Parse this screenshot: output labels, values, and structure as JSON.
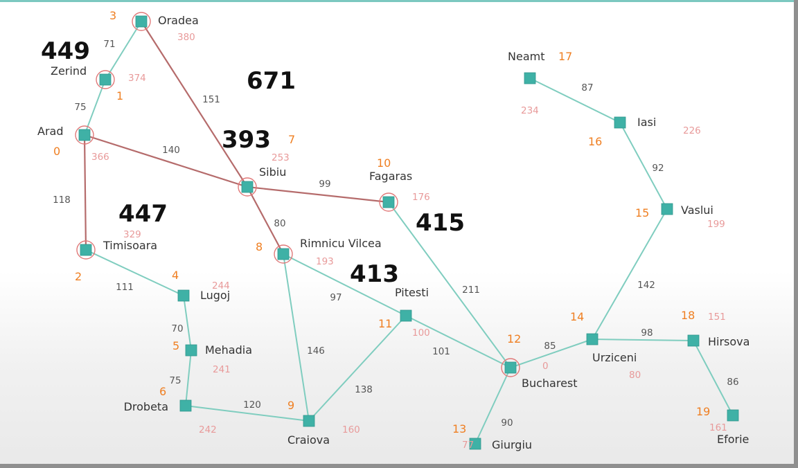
{
  "colors": {
    "edge_default": "#7fcdbf",
    "edge_highlight": "#b56b6b",
    "node_fill": "#3fb1a6",
    "ring": "#e07878",
    "index_text": "#ef7f22",
    "heuristic_text": "#e89a9a",
    "distance_text": "#555555",
    "fscore_text": "#111111"
  },
  "cities": [
    {
      "id": "arad",
      "name": "Arad",
      "index": "0",
      "heuristic": "366",
      "circled": true
    },
    {
      "id": "zerind",
      "name": "Zerind",
      "index": "1",
      "heuristic": "374",
      "circled": true
    },
    {
      "id": "timisoara",
      "name": "Timisoara",
      "index": "2",
      "heuristic": "329",
      "circled": true
    },
    {
      "id": "oradea",
      "name": "Oradea",
      "index": "3",
      "heuristic": "380",
      "circled": true
    },
    {
      "id": "lugoj",
      "name": "Lugoj",
      "index": "4",
      "heuristic": "244",
      "circled": false
    },
    {
      "id": "mehadia",
      "name": "Mehadia",
      "index": "5",
      "heuristic": "241",
      "circled": false
    },
    {
      "id": "drobeta",
      "name": "Drobeta",
      "index": "6",
      "heuristic": "242",
      "circled": false
    },
    {
      "id": "sibiu",
      "name": "Sibiu",
      "index": "7",
      "heuristic": "253",
      "circled": true
    },
    {
      "id": "rimnicu",
      "name": "Rimnicu Vilcea",
      "index": "8",
      "heuristic": "193",
      "circled": true
    },
    {
      "id": "craiova",
      "name": "Craiova",
      "index": "9",
      "heuristic": "160",
      "circled": false
    },
    {
      "id": "fagaras",
      "name": "Fagaras",
      "index": "10",
      "heuristic": "176",
      "circled": true
    },
    {
      "id": "pitesti",
      "name": "Pitesti",
      "index": "11",
      "heuristic": "100",
      "circled": false
    },
    {
      "id": "bucharest",
      "name": "Bucharest",
      "index": "12",
      "heuristic": "0",
      "circled": true
    },
    {
      "id": "giurgiu",
      "name": "Giurgiu",
      "index": "13",
      "heuristic": "77",
      "circled": false
    },
    {
      "id": "urziceni",
      "name": "Urziceni",
      "index": "14",
      "heuristic": "80",
      "circled": false
    },
    {
      "id": "vaslui",
      "name": "Vaslui",
      "index": "15",
      "heuristic": "199",
      "circled": false
    },
    {
      "id": "iasi",
      "name": "Iasi",
      "index": "16",
      "heuristic": "226",
      "circled": false
    },
    {
      "id": "neamt",
      "name": "Neamt",
      "index": "17",
      "heuristic": "234",
      "circled": false
    },
    {
      "id": "hirsova",
      "name": "Hirsova",
      "index": "18",
      "heuristic": "151",
      "circled": false
    },
    {
      "id": "eforie",
      "name": "Eforie",
      "index": "19",
      "heuristic": "161",
      "circled": false
    }
  ],
  "roads": [
    {
      "from": "oradea",
      "to": "zerind",
      "distance": "71",
      "highlighted": false
    },
    {
      "from": "zerind",
      "to": "arad",
      "distance": "75",
      "highlighted": false
    },
    {
      "from": "oradea",
      "to": "sibiu",
      "distance": "151",
      "highlighted": true
    },
    {
      "from": "arad",
      "to": "sibiu",
      "distance": "140",
      "highlighted": true
    },
    {
      "from": "arad",
      "to": "timisoara",
      "distance": "118",
      "highlighted": true
    },
    {
      "from": "timisoara",
      "to": "lugoj",
      "distance": "111",
      "highlighted": false
    },
    {
      "from": "lugoj",
      "to": "mehadia",
      "distance": "70",
      "highlighted": false
    },
    {
      "from": "mehadia",
      "to": "drobeta",
      "distance": "75",
      "highlighted": false
    },
    {
      "from": "drobeta",
      "to": "craiova",
      "distance": "120",
      "highlighted": false
    },
    {
      "from": "sibiu",
      "to": "fagaras",
      "distance": "99",
      "highlighted": true
    },
    {
      "from": "sibiu",
      "to": "rimnicu",
      "distance": "80",
      "highlighted": true
    },
    {
      "from": "rimnicu",
      "to": "pitesti",
      "distance": "97",
      "highlighted": false
    },
    {
      "from": "rimnicu",
      "to": "craiova",
      "distance": "146",
      "highlighted": false
    },
    {
      "from": "craiova",
      "to": "pitesti",
      "distance": "138",
      "highlighted": false
    },
    {
      "from": "fagaras",
      "to": "bucharest",
      "distance": "211",
      "highlighted": false
    },
    {
      "from": "pitesti",
      "to": "bucharest",
      "distance": "101",
      "highlighted": false
    },
    {
      "from": "bucharest",
      "to": "giurgiu",
      "distance": "90",
      "highlighted": false
    },
    {
      "from": "bucharest",
      "to": "urziceni",
      "distance": "85",
      "highlighted": false
    },
    {
      "from": "urziceni",
      "to": "hirsova",
      "distance": "98",
      "highlighted": false
    },
    {
      "from": "hirsova",
      "to": "eforie",
      "distance": "86",
      "highlighted": false
    },
    {
      "from": "urziceni",
      "to": "vaslui",
      "distance": "142",
      "highlighted": false
    },
    {
      "from": "vaslui",
      "to": "iasi",
      "distance": "92",
      "highlighted": false
    },
    {
      "from": "iasi",
      "to": "neamt",
      "distance": "87",
      "highlighted": false
    }
  ],
  "annotations": [
    {
      "id": "zerind",
      "value": "449"
    },
    {
      "id": "oradea",
      "value": "671"
    },
    {
      "id": "sibiu",
      "value": "393"
    },
    {
      "id": "timisoara",
      "value": "447"
    },
    {
      "id": "fagaras",
      "value": "415"
    },
    {
      "id": "rimnicu",
      "value": "413"
    }
  ]
}
